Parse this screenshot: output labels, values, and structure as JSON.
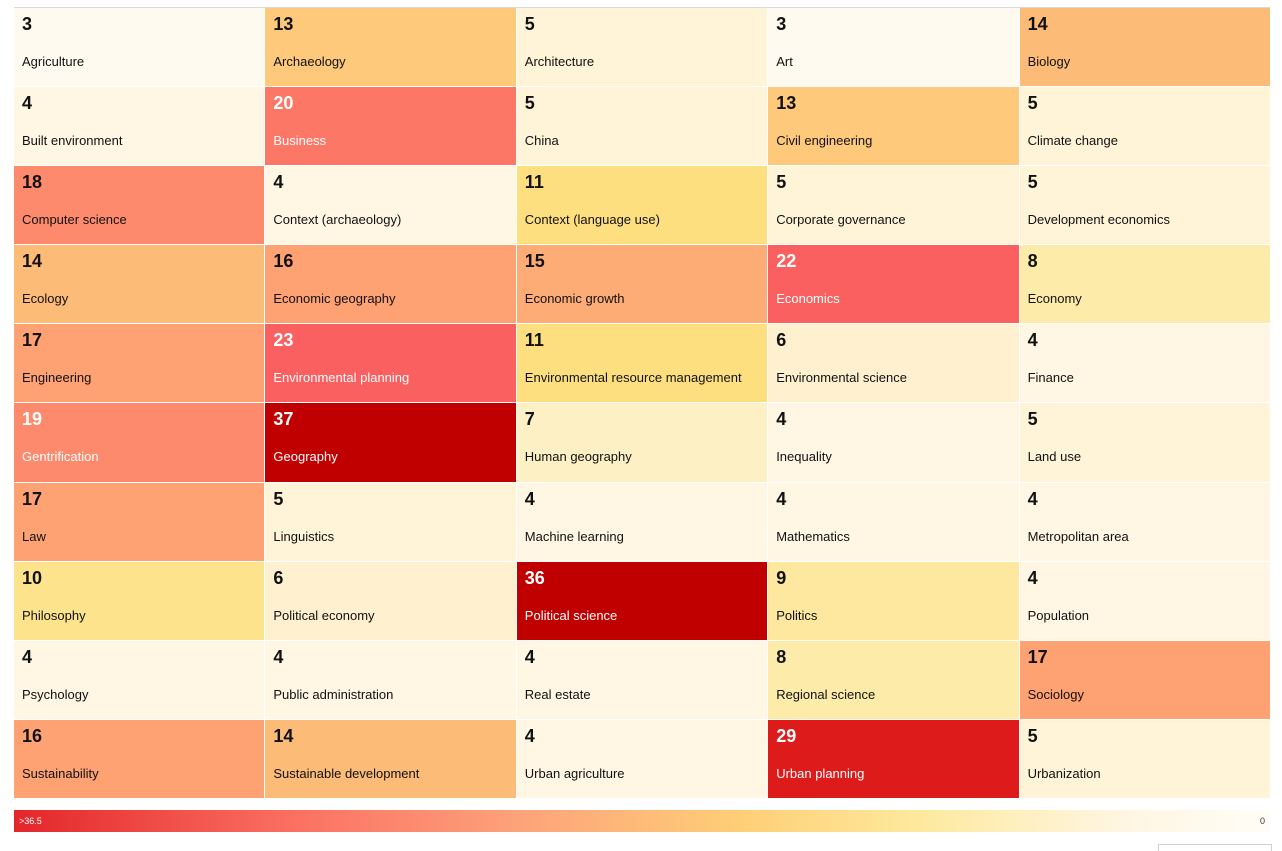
{
  "chart_data": {
    "type": "heatmap",
    "columns": 5,
    "cells": [
      {
        "label": "Agriculture",
        "value": 3
      },
      {
        "label": "Archaeology",
        "value": 13
      },
      {
        "label": "Architecture",
        "value": 5
      },
      {
        "label": "Art",
        "value": 3
      },
      {
        "label": "Biology",
        "value": 14
      },
      {
        "label": "Built environment",
        "value": 4
      },
      {
        "label": "Business",
        "value": 20
      },
      {
        "label": "China",
        "value": 5
      },
      {
        "label": "Civil engineering",
        "value": 13
      },
      {
        "label": "Climate change",
        "value": 5
      },
      {
        "label": "Computer science",
        "value": 18
      },
      {
        "label": "Context (archaeology)",
        "value": 4
      },
      {
        "label": "Context (language use)",
        "value": 11
      },
      {
        "label": "Corporate governance",
        "value": 5
      },
      {
        "label": "Development economics",
        "value": 5
      },
      {
        "label": "Ecology",
        "value": 14
      },
      {
        "label": "Economic geography",
        "value": 16
      },
      {
        "label": "Economic growth",
        "value": 15
      },
      {
        "label": "Economics",
        "value": 22
      },
      {
        "label": "Economy",
        "value": 8
      },
      {
        "label": "Engineering",
        "value": 17
      },
      {
        "label": "Environmental planning",
        "value": 23
      },
      {
        "label": "Environmental resource management",
        "value": 11
      },
      {
        "label": "Environmental science",
        "value": 6
      },
      {
        "label": "Finance",
        "value": 4
      },
      {
        "label": "Gentrification",
        "value": 19
      },
      {
        "label": "Geography",
        "value": 37
      },
      {
        "label": "Human geography",
        "value": 7
      },
      {
        "label": "Inequality",
        "value": 4
      },
      {
        "label": "Land use",
        "value": 5
      },
      {
        "label": "Law",
        "value": 17
      },
      {
        "label": "Linguistics",
        "value": 5
      },
      {
        "label": "Machine learning",
        "value": 4
      },
      {
        "label": "Mathematics",
        "value": 4
      },
      {
        "label": "Metropolitan area",
        "value": 4
      },
      {
        "label": "Philosophy",
        "value": 10
      },
      {
        "label": "Political economy",
        "value": 6
      },
      {
        "label": "Political science",
        "value": 36
      },
      {
        "label": "Politics",
        "value": 9
      },
      {
        "label": "Population",
        "value": 4
      },
      {
        "label": "Psychology",
        "value": 4
      },
      {
        "label": "Public administration",
        "value": 4
      },
      {
        "label": "Real estate",
        "value": 4
      },
      {
        "label": "Regional science",
        "value": 8
      },
      {
        "label": "Sociology",
        "value": 17
      },
      {
        "label": "Sustainability",
        "value": 16
      },
      {
        "label": "Sustainable development",
        "value": 14
      },
      {
        "label": "Urban agriculture",
        "value": 4
      },
      {
        "label": "Urban planning",
        "value": 29
      },
      {
        "label": "Urbanization",
        "value": 5
      }
    ],
    "legend": {
      "max_label": ">36.5",
      "min_label": "0",
      "max_value": 36.5,
      "min_value": 0,
      "colors": [
        "#c00000",
        "#e3262b",
        "#fb6f62",
        "#fda27a",
        "#fecf77",
        "#fde99d",
        "#fff6e1",
        "#fffdf7"
      ]
    },
    "title": "",
    "xlabel": "",
    "ylabel": ""
  }
}
